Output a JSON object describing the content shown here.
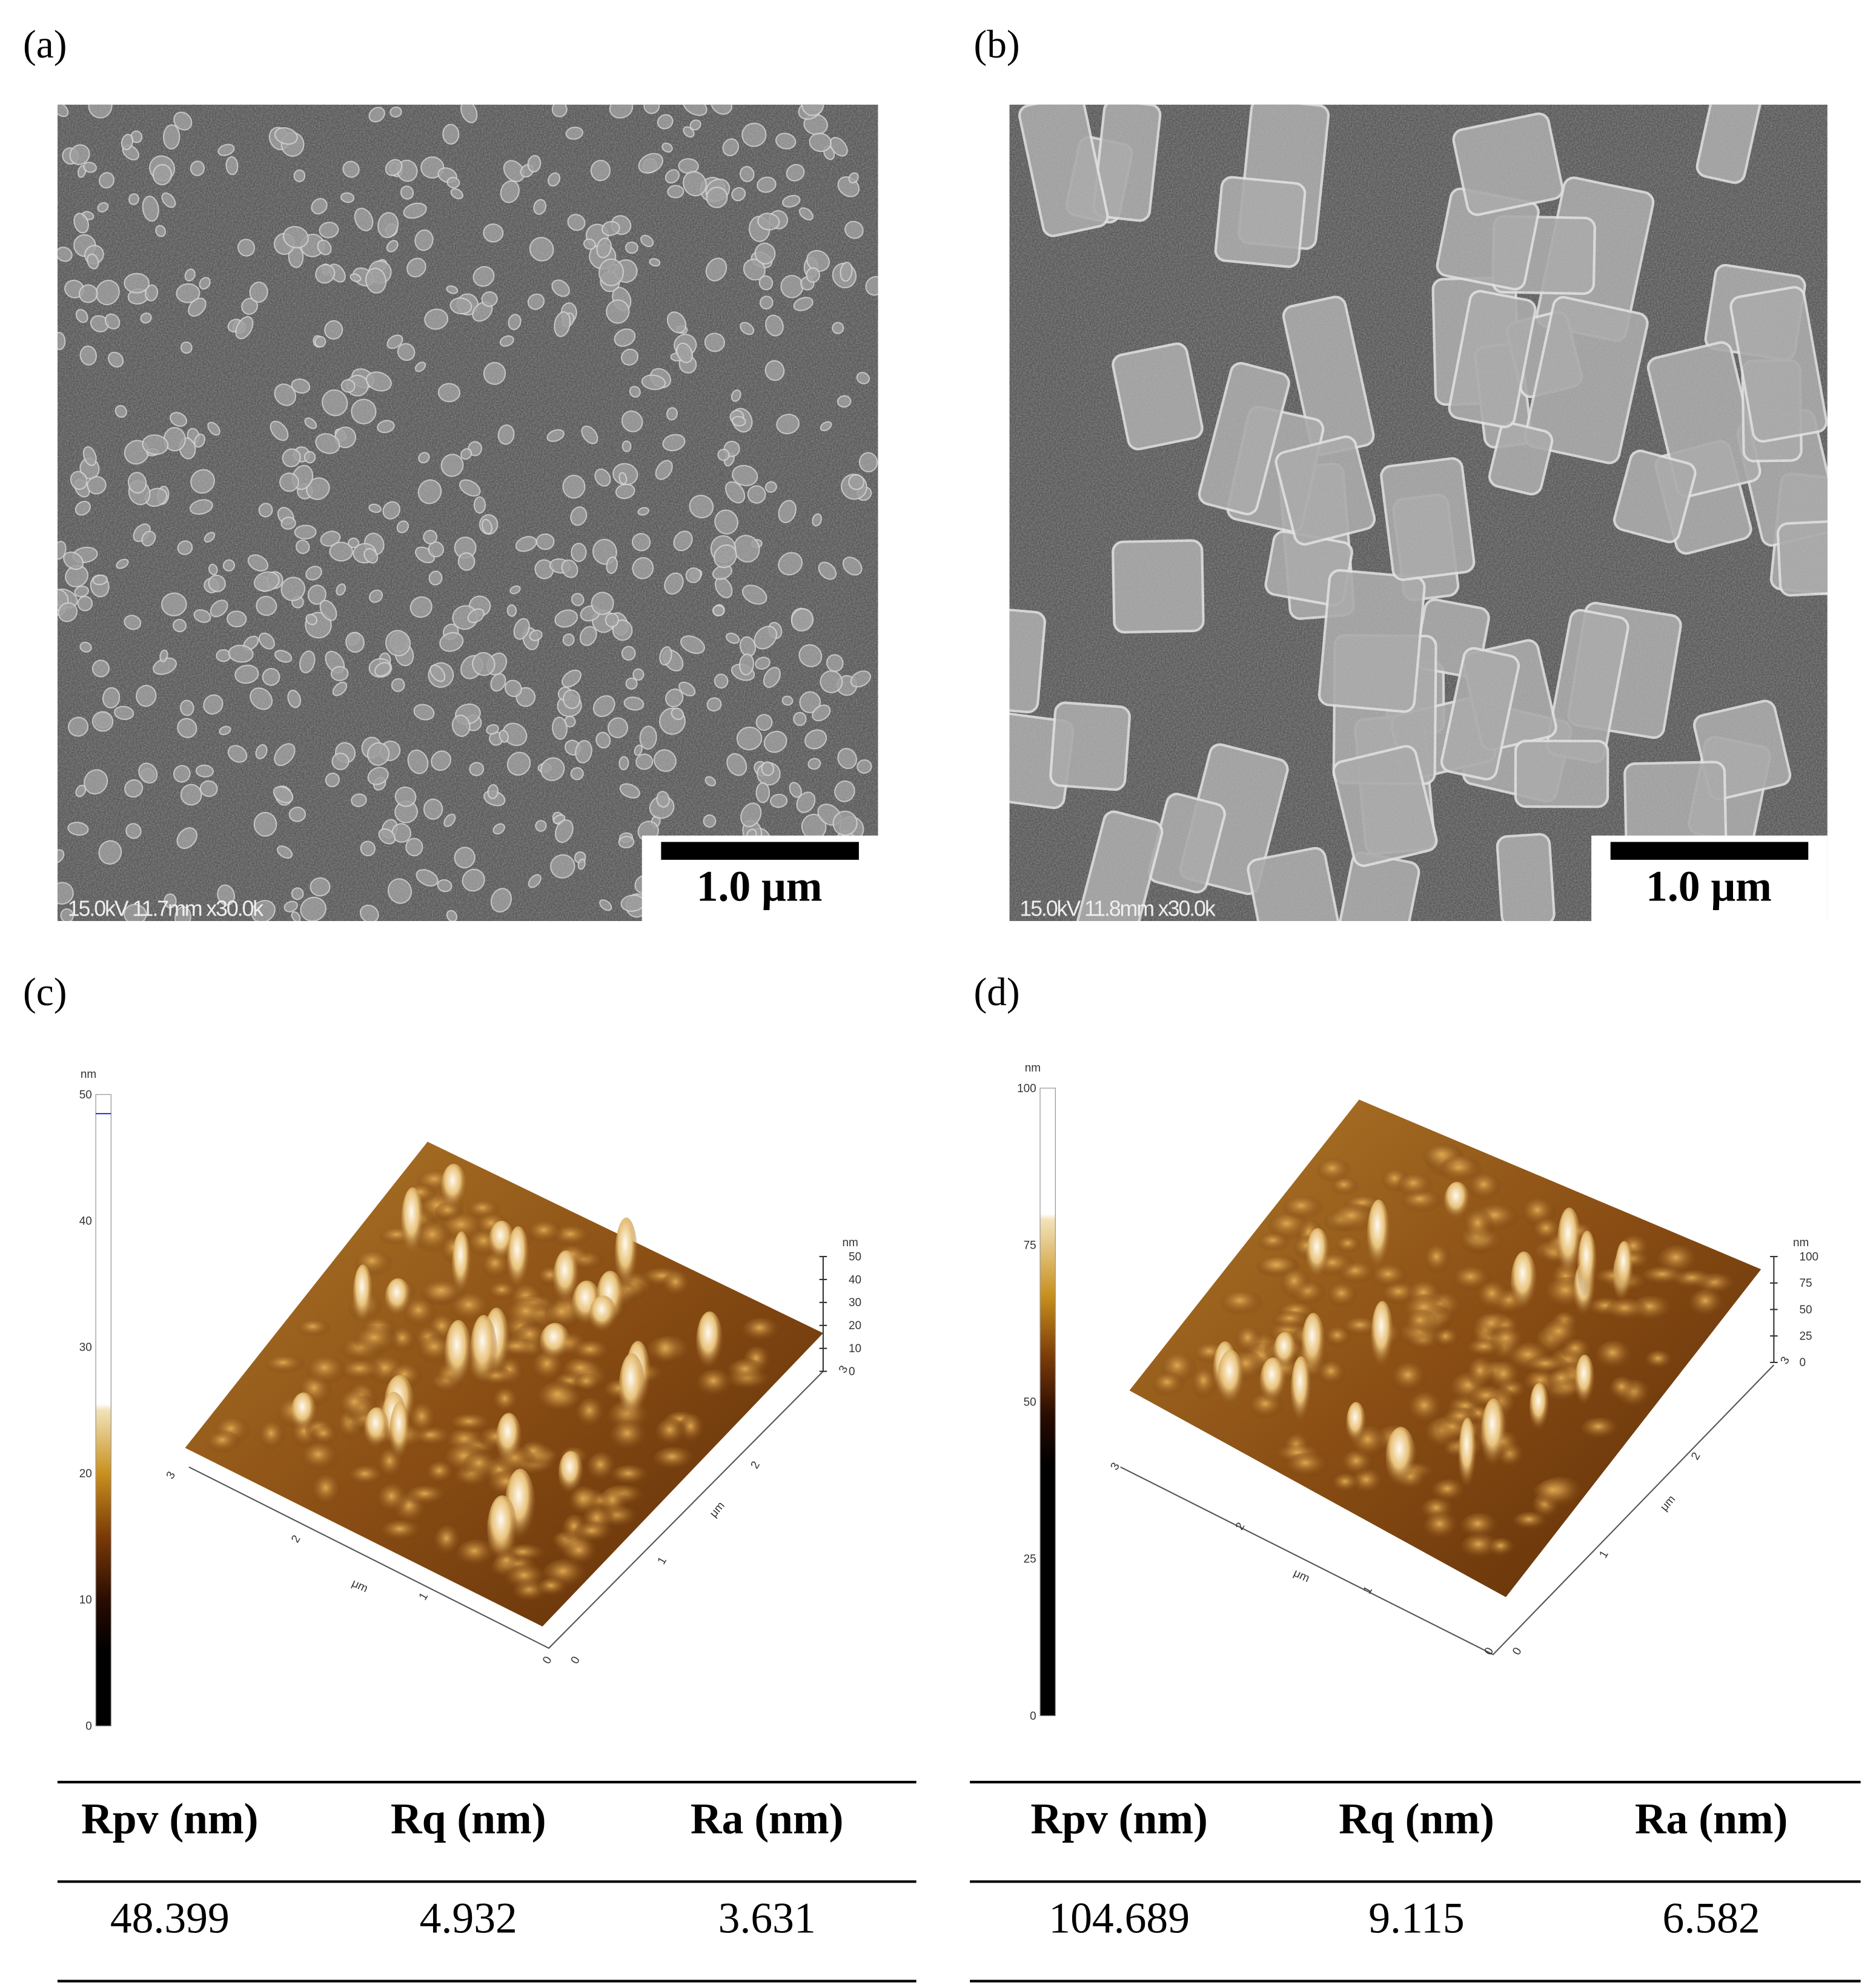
{
  "panels": [
    {
      "label": "(a)",
      "sem_info": "15.0kV 11.7mm x30.0k",
      "scale_bar": "1.0 μm"
    },
    {
      "label": "(b)",
      "sem_info": "15.0kV 11.8mm x30.0k",
      "scale_bar": "1.0 μm"
    },
    {
      "label": "(c)",
      "colorbar": {
        "unit": "nm",
        "ticks": [
          "0",
          "10",
          "20",
          "30",
          "40",
          "50"
        ]
      },
      "z_axis": {
        "unit": "nm",
        "ticks": [
          "0",
          "10",
          "20",
          "30",
          "40",
          "50"
        ]
      },
      "x_axis": {
        "unit": "μm",
        "ticks": [
          "0",
          "1",
          "2",
          "3"
        ]
      },
      "y_axis": {
        "unit": "μm",
        "ticks": [
          "0",
          "1",
          "2",
          "3"
        ]
      },
      "table": {
        "header": [
          "Rpv (nm)",
          "Rq (nm)",
          "Ra (nm)"
        ],
        "row": [
          "48.399",
          "4.932",
          "3.631"
        ]
      }
    },
    {
      "label": "(d)",
      "colorbar": {
        "unit": "nm",
        "ticks": [
          "0",
          "25",
          "50",
          "75",
          "100"
        ]
      },
      "z_axis": {
        "unit": "nm",
        "ticks": [
          "0",
          "25",
          "50",
          "75",
          "100"
        ]
      },
      "x_axis": {
        "unit": "μm",
        "ticks": [
          "0",
          "1",
          "2",
          "3"
        ]
      },
      "y_axis": {
        "unit": "μm",
        "ticks": [
          "0",
          "1",
          "2",
          "3"
        ]
      },
      "table": {
        "header": [
          "Rpv (nm)",
          "Rq (nm)",
          "Ra (nm)"
        ],
        "row": [
          "104.689",
          "9.115",
          "6.582"
        ]
      }
    }
  ]
}
